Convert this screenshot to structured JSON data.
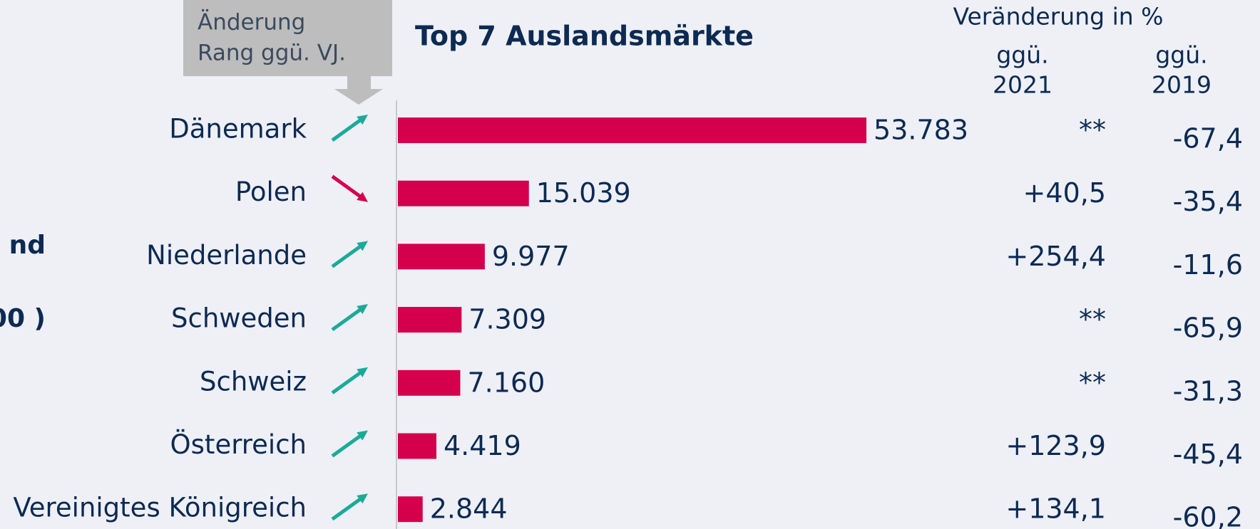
{
  "chart_data": {
    "type": "bar",
    "title": "Top 7 Auslandsmärkte",
    "categories": [
      "Dänemark",
      "Polen",
      "Niederlande",
      "Schweden",
      "Schweiz",
      "Österreich",
      "Vereinigtes Königreich"
    ],
    "values": [
      53783,
      15039,
      9977,
      7309,
      7160,
      4419,
      2844
    ],
    "value_labels": [
      "53.783",
      "15.039",
      "9.977",
      "7.309",
      "7.160",
      "4.419",
      "2.844"
    ],
    "color": "#d4004c",
    "xlim": [
      0,
      60000
    ],
    "rank_header": [
      "Änderung",
      "Rang ggü. VJ."
    ],
    "rank_change": [
      "up",
      "down",
      "up",
      "up",
      "up",
      "up",
      "up"
    ],
    "rank_colors": {
      "up": "#1aab98",
      "down": "#d4004c"
    },
    "column_header": "Veränderung in %",
    "columns": [
      {
        "label": [
          "ggü.",
          "2021"
        ],
        "values": [
          "**",
          "+40,5",
          "+254,4",
          "**",
          "**",
          "+123,9",
          "+134,1"
        ]
      },
      {
        "label": [
          "ggü.",
          "2019"
        ],
        "values": [
          "-67,4",
          "-35,4",
          "-11,6",
          "-65,9",
          "-31,3",
          "-45,4",
          "-60,2"
        ]
      }
    ],
    "left_fragments": [
      "nd",
      "00 )"
    ]
  }
}
